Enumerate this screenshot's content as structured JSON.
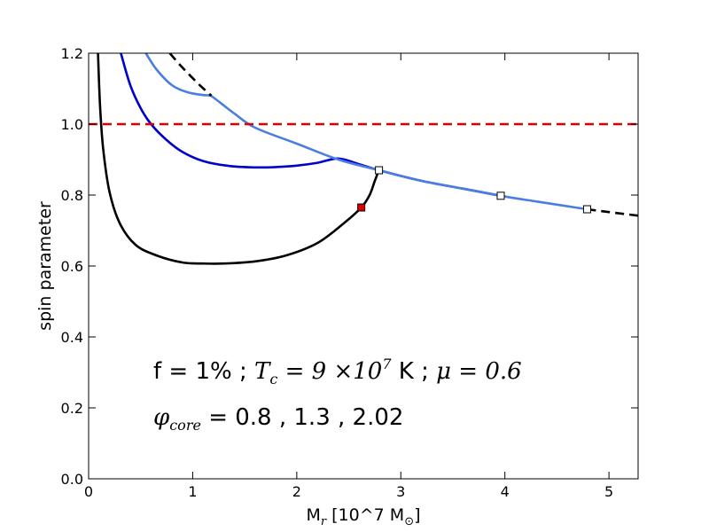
{
  "chart_data": {
    "type": "line",
    "xlabel": {
      "base": "M",
      "sub": "r",
      "unit_pre": " [10^7 M",
      "unit_sub": "⊙",
      "unit_post": "]"
    },
    "ylabel": "spin parameter",
    "xlim": [
      0,
      5.28
    ],
    "ylim": [
      0,
      1.2
    ],
    "xticks": [
      0,
      1,
      2,
      3,
      4,
      5
    ],
    "yticks": [
      0.0,
      0.2,
      0.4,
      0.6,
      0.8,
      1.0,
      1.2
    ],
    "xtick_labels": [
      "0",
      "1",
      "2",
      "3",
      "4",
      "5"
    ],
    "ytick_labels": [
      "0.0",
      "0.2",
      "0.4",
      "0.6",
      "0.8",
      "1.0",
      "1.2"
    ],
    "grid": false,
    "legend": "none",
    "series": [
      {
        "color": "#000000",
        "style": "solid",
        "x": [
          0.09,
          0.11,
          0.14,
          0.2,
          0.3,
          0.45,
          0.65,
          0.9,
          1.1,
          1.3,
          1.6,
          1.9,
          2.2,
          2.45,
          2.62,
          2.7,
          2.75,
          2.79
        ],
        "y": [
          1.2,
          1.05,
          0.93,
          0.81,
          0.72,
          0.66,
          0.63,
          0.61,
          0.607,
          0.607,
          0.613,
          0.63,
          0.665,
          0.72,
          0.765,
          0.8,
          0.84,
          0.87
        ]
      },
      {
        "color": "#0000cc",
        "style": "solid",
        "x": [
          0.31,
          0.4,
          0.5,
          0.6,
          0.75,
          0.9,
          1.1,
          1.35,
          1.6,
          1.8,
          2.0,
          2.2,
          2.4,
          2.6,
          2.79,
          3.2,
          3.6,
          3.96
        ],
        "y": [
          1.2,
          1.11,
          1.045,
          1.0,
          0.955,
          0.922,
          0.896,
          0.882,
          0.878,
          0.879,
          0.883,
          0.891,
          0.903,
          0.887,
          0.87,
          0.84,
          0.818,
          0.798
        ]
      },
      {
        "color": "#4a7ee0",
        "style": "solid",
        "x": [
          0.55,
          0.65,
          0.8,
          0.95,
          1.1,
          1.16,
          1.2,
          1.4,
          1.6,
          2.0,
          2.4,
          2.79,
          3.2,
          3.6,
          3.96,
          4.3,
          4.79
        ],
        "y": [
          1.2,
          1.155,
          1.11,
          1.09,
          1.082,
          1.081,
          1.075,
          1.03,
          0.99,
          0.945,
          0.9,
          0.87,
          0.84,
          0.818,
          0.798,
          0.782,
          0.76
        ]
      },
      {
        "color": "#000000",
        "style": "dashed",
        "x": [
          0.78,
          0.9,
          1.05,
          1.18
        ],
        "y": [
          1.2,
          1.16,
          1.115,
          1.08
        ]
      },
      {
        "color": "#000000",
        "style": "dashed",
        "x": [
          4.79,
          5.0,
          5.28
        ],
        "y": [
          0.76,
          0.752,
          0.742
        ]
      },
      {
        "color": "#dd0000",
        "style": "dashed",
        "x": [
          0,
          5.28
        ],
        "y": [
          1.0,
          1.0
        ]
      }
    ],
    "markers": [
      {
        "x": 2.62,
        "y": 0.765,
        "fill": "#dd0000"
      },
      {
        "x": 2.79,
        "y": 0.87,
        "fill": "#ffffff"
      },
      {
        "x": 3.96,
        "y": 0.798,
        "fill": "#ffffff"
      },
      {
        "x": 4.79,
        "y": 0.76,
        "fill": "#ffffff"
      }
    ],
    "annotations": {
      "line1": {
        "a": "f = 1% ; ",
        "b": "T",
        "b_sub": "c",
        "c": " = 9 ×10",
        "c_sup": "7",
        "d": " K ; ",
        "e": "μ",
        "f": " = 0.6"
      },
      "line2": {
        "a": "φ",
        "a_sub": "core",
        "b": " = 0.8 , 1.3 , 2.02"
      }
    }
  }
}
